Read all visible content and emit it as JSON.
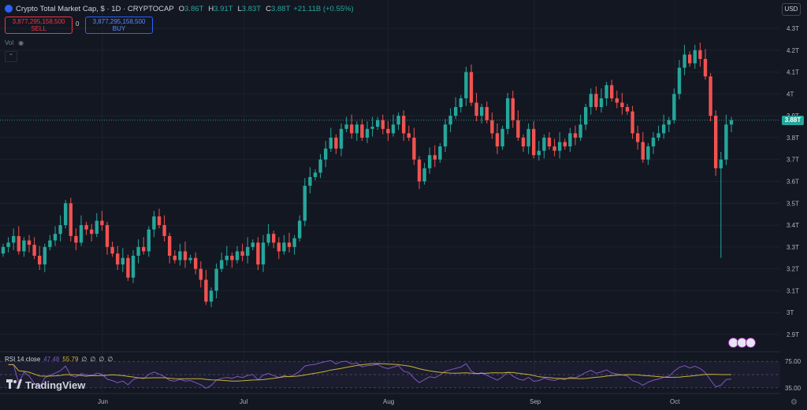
{
  "header": {
    "title": "Crypto Total Market Cap, $ · 1D · CRYPTOCAP",
    "open_label": "O",
    "open": "3.86T",
    "high_label": "H",
    "high": "3.91T",
    "low_label": "L",
    "low": "3.83T",
    "close_label": "C",
    "close": "3.88T",
    "change": "+21.11B (+0.55%)"
  },
  "trade": {
    "sell_price": "3,877,295,158,500",
    "sell_label": "SELL",
    "spread": "0",
    "buy_price": "3,877,295,158,500",
    "buy_label": "BUY"
  },
  "volume_label": "Vol",
  "currency": "USD",
  "last_price": "3.88T",
  "colors": {
    "background": "#131722",
    "up": "#26a69a",
    "down": "#ef5350",
    "rsi": "#7e57c2",
    "rsi_ma": "#c9b23a"
  },
  "chart_data": [
    {
      "type": "candlestick",
      "y_ticks": [
        "4.3T",
        "4.2T",
        "4.1T",
        "4T",
        "3.9T",
        "3.8T",
        "3.7T",
        "3.6T",
        "3.5T",
        "3.4T",
        "3.3T",
        "3.2T",
        "3.1T",
        "3T",
        "2.9T"
      ],
      "x_ticks": [
        "Jun",
        "Jul",
        "Aug",
        "Sep",
        "Oct"
      ],
      "ylim": [
        2.85,
        4.35
      ],
      "closes": [
        3.3,
        3.32,
        3.35,
        3.28,
        3.33,
        3.31,
        3.26,
        3.22,
        3.3,
        3.33,
        3.36,
        3.4,
        3.5,
        3.35,
        3.32,
        3.4,
        3.38,
        3.36,
        3.42,
        3.4,
        3.3,
        3.27,
        3.22,
        3.25,
        3.16,
        3.26,
        3.3,
        3.28,
        3.38,
        3.44,
        3.4,
        3.35,
        3.26,
        3.24,
        3.28,
        3.24,
        3.25,
        3.2,
        3.15,
        3.05,
        3.1,
        3.2,
        3.24,
        3.26,
        3.24,
        3.28,
        3.26,
        3.3,
        3.32,
        3.22,
        3.32,
        3.36,
        3.32,
        3.28,
        3.32,
        3.3,
        3.34,
        3.42,
        3.58,
        3.62,
        3.64,
        3.7,
        3.75,
        3.8,
        3.75,
        3.84,
        3.86,
        3.82,
        3.86,
        3.8,
        3.84,
        3.85,
        3.88,
        3.84,
        3.82,
        3.86,
        3.9,
        3.82,
        3.8,
        3.7,
        3.6,
        3.66,
        3.72,
        3.7,
        3.76,
        3.86,
        3.9,
        3.94,
        3.98,
        4.1,
        3.96,
        3.9,
        3.94,
        3.88,
        3.82,
        3.76,
        3.84,
        3.98,
        3.88,
        3.8,
        3.76,
        3.84,
        3.72,
        3.74,
        3.8,
        3.76,
        3.74,
        3.78,
        3.76,
        3.82,
        3.8,
        3.86,
        3.94,
        4.0,
        3.94,
        3.98,
        4.04,
        3.98,
        3.96,
        3.94,
        3.92,
        3.82,
        3.78,
        3.7,
        3.76,
        3.8,
        3.82,
        3.86,
        3.88,
        4.0,
        4.12,
        4.18,
        4.14,
        4.2,
        4.16,
        4.08,
        3.9,
        3.66,
        3.7,
        3.86,
        3.88
      ],
      "volume": []
    },
    {
      "type": "line",
      "indicator_label": "RSI 14 close",
      "rsi_value": "47.48",
      "rsi_ma_value": "55.79",
      "extra_values": [
        "∅",
        "∅",
        "∅",
        "∅"
      ],
      "y_ticks": [
        "75.00",
        "35.00"
      ],
      "ylim": [
        30,
        80
      ]
    }
  ],
  "brand": "TradingView"
}
